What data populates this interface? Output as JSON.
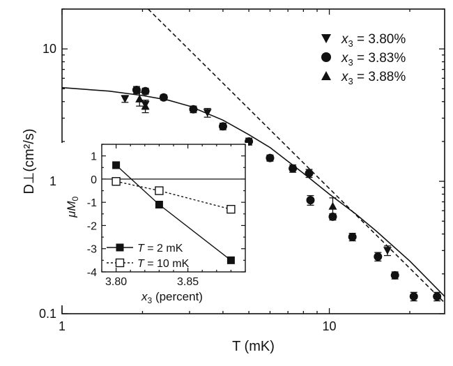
{
  "chart_data": [
    {
      "type": "scatter",
      "x_scale": "log",
      "y_scale": "log",
      "xlabel": "T (mK)",
      "ylabel": "D⊥(cm²/s)",
      "xlim": [
        1,
        27
      ],
      "ylim": [
        0.1,
        20
      ],
      "x_ticks": [
        1,
        10
      ],
      "x_tick_labels": [
        "1",
        "10"
      ],
      "y_ticks": [
        0.1,
        1,
        10
      ],
      "y_tick_labels": [
        "0.1",
        "1",
        "10"
      ],
      "grid": false,
      "legend_position": "top-right",
      "series": [
        {
          "name": "x3 = 3.80%",
          "legend_var": "x",
          "legend_sub": "3",
          "legend_val": " = 3.80%",
          "marker": "triangle-down",
          "x": [
            1.72,
            2.05,
            3.5,
            16.5
          ],
          "y": [
            4.2,
            3.8,
            3.3,
            0.3
          ],
          "err": [
            0.25,
            0.3,
            0.25,
            0.025
          ]
        },
        {
          "name": "x3 = 3.83%",
          "legend_var": "x",
          "legend_sub": "3",
          "legend_val": " = 3.83%",
          "marker": "circle",
          "x": [
            1.9,
            2.05,
            2.4,
            3.1,
            4.0,
            5.0,
            6.0,
            7.3,
            8.4,
            8.5,
            10.3,
            12.2,
            15.2,
            17.6,
            20.7,
            25.3
          ],
          "y": [
            4.9,
            4.8,
            4.3,
            3.5,
            2.6,
            2.0,
            1.5,
            1.25,
            1.15,
            0.72,
            0.54,
            0.38,
            0.27,
            0.195,
            0.135,
            0.135
          ],
          "err": [
            0.3,
            0.25,
            0.2,
            0.2,
            0.15,
            0.12,
            0.08,
            0.08,
            0.08,
            0.06,
            0.03,
            0.025,
            0.02,
            0.012,
            0.01,
            0.01
          ]
        },
        {
          "name": "x3 = 3.88%",
          "legend_var": "x",
          "legend_sub": "3",
          "legend_val": " = 3.88%",
          "marker": "triangle-up",
          "x": [
            1.95,
            2.05,
            10.3
          ],
          "y": [
            4.2,
            3.7,
            0.65
          ],
          "err": [
            0.5,
            0.4,
            0.1
          ]
        }
      ],
      "fits": [
        {
          "style": "solid",
          "x": [
            1.0,
            1.5,
            2.0,
            2.5,
            3.0,
            4.0,
            5.0,
            6.0,
            8.0,
            10.0,
            12.5,
            15.0,
            20.0,
            27.0
          ],
          "y": [
            5.1,
            4.8,
            4.45,
            4.1,
            3.7,
            2.9,
            2.25,
            1.8,
            1.15,
            0.8,
            0.57,
            0.42,
            0.25,
            0.135
          ]
        },
        {
          "style": "dashed",
          "x": [
            2.1,
            27.0
          ],
          "y": [
            20.0,
            0.121
          ]
        }
      ]
    },
    {
      "type": "line",
      "xlabel": "x3 (percent)",
      "xlabel_var": "x",
      "xlabel_sub": "3",
      "xlabel_rest": " (percent)",
      "ylabel": "μM0",
      "ylabel_var": "μM",
      "ylabel_sub": "0",
      "xlim": [
        3.79,
        3.89
      ],
      "ylim": [
        -4,
        1.5
      ],
      "x_ticks": [
        3.8,
        3.85
      ],
      "x_tick_labels": [
        "3.80",
        "3.85"
      ],
      "y_ticks": [
        -4,
        -3,
        -2,
        -1,
        0,
        1
      ],
      "y_tick_labels": [
        "-4",
        "-3",
        "-2",
        "-1",
        "0",
        "1"
      ],
      "reference_line_y": 0,
      "legend_position": "bottom-left",
      "series": [
        {
          "name": "T = 2 mK",
          "legend_var": "T",
          "legend_rest": " = 2 mK",
          "marker": "filled-square",
          "line": "solid",
          "x": [
            3.8,
            3.83,
            3.88
          ],
          "y": [
            0.6,
            -1.1,
            -3.5
          ]
        },
        {
          "name": "T = 10 mK",
          "legend_var": "T",
          "legend_rest": " = 10 mK",
          "marker": "open-square",
          "line": "dashed",
          "x": [
            3.8,
            3.83,
            3.88
          ],
          "y": [
            -0.1,
            -0.5,
            -1.3
          ]
        }
      ]
    }
  ]
}
